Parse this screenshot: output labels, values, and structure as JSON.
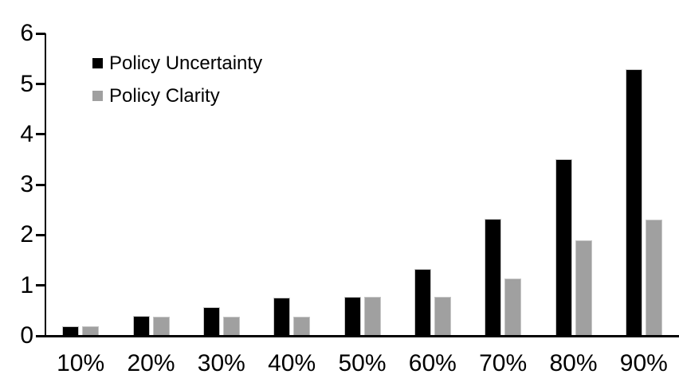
{
  "chart_data": {
    "type": "bar",
    "title": "",
    "xlabel": "",
    "ylabel": "",
    "categories": [
      "10%",
      "20%",
      "30%",
      "40%",
      "50%",
      "60%",
      "70%",
      "80%",
      "90%"
    ],
    "series": [
      {
        "name": "Policy Uncertainty",
        "color": "#000000",
        "values": [
          0.19,
          0.39,
          0.57,
          0.76,
          0.78,
          1.33,
          2.32,
          3.5,
          5.3
        ]
      },
      {
        "name": "Policy Clarity",
        "color": "#a0a0a0",
        "values": [
          0.19,
          0.38,
          0.38,
          0.38,
          0.77,
          0.77,
          1.13,
          1.9,
          2.3
        ]
      }
    ],
    "ylim": [
      0,
      6
    ],
    "yticks": [
      0,
      1,
      2,
      3,
      4,
      5,
      6
    ],
    "grid": false,
    "legend_position": "top-left-inside",
    "axis_color": "#000000",
    "background_color": "#ffffff"
  }
}
